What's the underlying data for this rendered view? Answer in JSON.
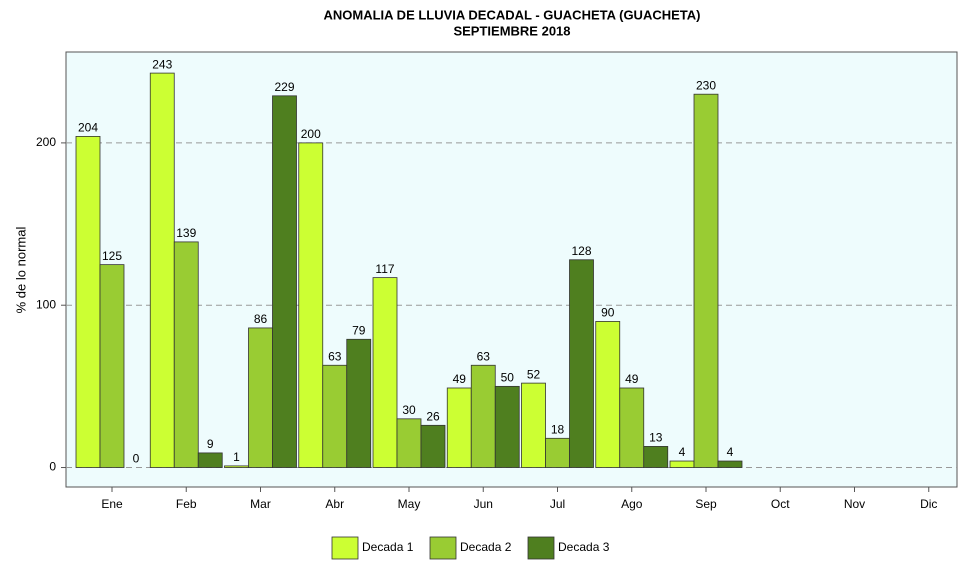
{
  "chart_data": {
    "type": "bar",
    "title": "ANOMALIA DE LLUVIA DECADAL - GUACHETA (GUACHETA)",
    "subtitle": "SEPTIEMBRE 2018",
    "y_label": "% de lo normal",
    "categories": [
      "Ene",
      "Feb",
      "Mar",
      "Abr",
      "May",
      "Jun",
      "Jul",
      "Ago",
      "Sep",
      "Oct",
      "Nov",
      "Dic"
    ],
    "series": [
      {
        "name": "Decada 1",
        "color": "#ccff33",
        "values": [
          204,
          243,
          1,
          200,
          117,
          49,
          52,
          90,
          4,
          null,
          null,
          null
        ]
      },
      {
        "name": "Decada 2",
        "color": "#99cc33",
        "values": [
          125,
          139,
          86,
          63,
          30,
          63,
          18,
          49,
          230,
          null,
          null,
          null
        ]
      },
      {
        "name": "Decada 3",
        "color": "#4f7f1f",
        "values": [
          0,
          9,
          229,
          79,
          26,
          50,
          128,
          13,
          4,
          null,
          null,
          null
        ]
      }
    ],
    "ylim": [
      -12,
      256
    ],
    "yticks": [
      0,
      100,
      200
    ],
    "grid": true,
    "legend": "bottom"
  }
}
